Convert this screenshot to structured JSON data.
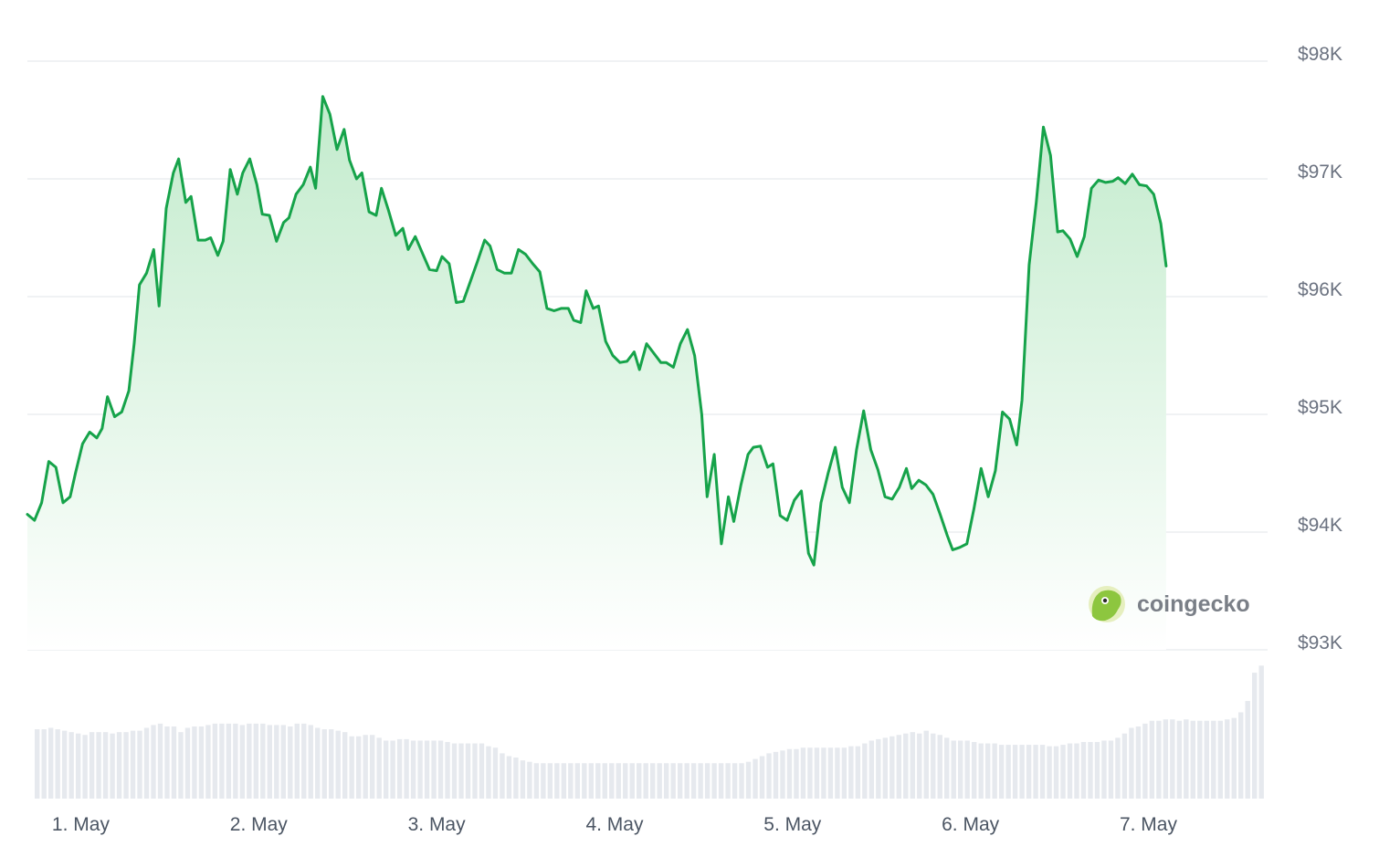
{
  "watermark": {
    "text": "coingecko"
  },
  "colors": {
    "line": "#16a34a",
    "area_top": "#c2ebcc",
    "area_bottom": "#ffffff",
    "grid": "#ebedf0",
    "volume": "#e6e9ee",
    "axis_text": "#6b7280"
  },
  "chart_data": {
    "type": "area",
    "title": "",
    "xlabel": "",
    "ylabel": "",
    "ylim": [
      93000,
      98000
    ],
    "y_ticks": [
      98000,
      97000,
      96000,
      95000,
      94000,
      93000
    ],
    "y_tick_labels": [
      "$98K",
      "$97K",
      "$96K",
      "$95K",
      "$94K",
      "$93K"
    ],
    "x_tick_labels": [
      "1. May",
      "2. May",
      "3. May",
      "4. May",
      "5. May",
      "6. May",
      "7. May"
    ],
    "x_tick_positions_days": [
      1,
      2,
      3,
      4,
      5,
      6,
      7
    ],
    "x_range_days": [
      0.7,
      7.67
    ],
    "grid": true,
    "series": [
      {
        "values": [
          [
            0.7,
            94150
          ],
          [
            0.74,
            94100
          ],
          [
            0.78,
            94250
          ],
          [
            0.82,
            94600
          ],
          [
            0.86,
            94550
          ],
          [
            0.9,
            94250
          ],
          [
            0.94,
            94300
          ],
          [
            0.97,
            94500
          ],
          [
            1.01,
            94750
          ],
          [
            1.05,
            94850
          ],
          [
            1.09,
            94800
          ],
          [
            1.12,
            94880
          ],
          [
            1.15,
            95150
          ],
          [
            1.19,
            94980
          ],
          [
            1.23,
            95020
          ],
          [
            1.27,
            95200
          ],
          [
            1.3,
            95600
          ],
          [
            1.33,
            96100
          ],
          [
            1.37,
            96200
          ],
          [
            1.41,
            96400
          ],
          [
            1.44,
            95920
          ],
          [
            1.48,
            96750
          ],
          [
            1.52,
            97050
          ],
          [
            1.55,
            97170
          ],
          [
            1.59,
            96800
          ],
          [
            1.62,
            96850
          ],
          [
            1.66,
            96480
          ],
          [
            1.7,
            96480
          ],
          [
            1.73,
            96500
          ],
          [
            1.77,
            96350
          ],
          [
            1.8,
            96470
          ],
          [
            1.84,
            97080
          ],
          [
            1.88,
            96870
          ],
          [
            1.91,
            97050
          ],
          [
            1.95,
            97170
          ],
          [
            1.99,
            96950
          ],
          [
            2.02,
            96700
          ],
          [
            2.06,
            96690
          ],
          [
            2.1,
            96470
          ],
          [
            2.14,
            96630
          ],
          [
            2.17,
            96670
          ],
          [
            2.21,
            96870
          ],
          [
            2.25,
            96950
          ],
          [
            2.29,
            97100
          ],
          [
            2.32,
            96920
          ],
          [
            2.36,
            97700
          ],
          [
            2.4,
            97550
          ],
          [
            2.44,
            97250
          ],
          [
            2.48,
            97420
          ],
          [
            2.51,
            97160
          ],
          [
            2.55,
            97000
          ],
          [
            2.58,
            97050
          ],
          [
            2.62,
            96720
          ],
          [
            2.66,
            96690
          ],
          [
            2.69,
            96920
          ],
          [
            2.73,
            96730
          ],
          [
            2.77,
            96520
          ],
          [
            2.81,
            96580
          ],
          [
            2.84,
            96400
          ],
          [
            2.88,
            96510
          ],
          [
            2.92,
            96370
          ],
          [
            2.96,
            96230
          ],
          [
            3.0,
            96220
          ],
          [
            3.03,
            96340
          ],
          [
            3.07,
            96280
          ],
          [
            3.11,
            95950
          ],
          [
            3.15,
            95960
          ],
          [
            3.19,
            96130
          ],
          [
            3.23,
            96300
          ],
          [
            3.27,
            96480
          ],
          [
            3.3,
            96430
          ],
          [
            3.34,
            96230
          ],
          [
            3.38,
            96200
          ],
          [
            3.42,
            96200
          ],
          [
            3.46,
            96400
          ],
          [
            3.5,
            96360
          ],
          [
            3.54,
            96280
          ],
          [
            3.58,
            96210
          ],
          [
            3.62,
            95900
          ],
          [
            3.66,
            95880
          ],
          [
            3.7,
            95900
          ],
          [
            3.74,
            95900
          ],
          [
            3.77,
            95800
          ],
          [
            3.81,
            95780
          ],
          [
            3.84,
            96050
          ],
          [
            3.88,
            95900
          ],
          [
            3.91,
            95920
          ],
          [
            3.95,
            95620
          ],
          [
            3.99,
            95500
          ],
          [
            4.03,
            95440
          ],
          [
            4.07,
            95450
          ],
          [
            4.11,
            95530
          ],
          [
            4.14,
            95380
          ],
          [
            4.18,
            95600
          ],
          [
            4.22,
            95520
          ],
          [
            4.26,
            95440
          ],
          [
            4.29,
            95440
          ],
          [
            4.33,
            95400
          ],
          [
            4.37,
            95600
          ],
          [
            4.41,
            95720
          ],
          [
            4.45,
            95500
          ],
          [
            4.49,
            95000
          ],
          [
            4.52,
            94300
          ],
          [
            4.56,
            94660
          ],
          [
            4.6,
            93900
          ],
          [
            4.64,
            94300
          ],
          [
            4.67,
            94090
          ],
          [
            4.71,
            94400
          ],
          [
            4.75,
            94660
          ],
          [
            4.78,
            94720
          ],
          [
            4.82,
            94730
          ],
          [
            4.86,
            94550
          ],
          [
            4.89,
            94580
          ],
          [
            4.93,
            94140
          ],
          [
            4.97,
            94100
          ],
          [
            5.01,
            94270
          ],
          [
            5.05,
            94350
          ],
          [
            5.09,
            93820
          ],
          [
            5.12,
            93720
          ],
          [
            5.16,
            94250
          ],
          [
            5.2,
            94500
          ],
          [
            5.24,
            94720
          ],
          [
            5.28,
            94380
          ],
          [
            5.32,
            94250
          ],
          [
            5.36,
            94700
          ],
          [
            5.4,
            95030
          ],
          [
            5.44,
            94700
          ],
          [
            5.48,
            94530
          ],
          [
            5.52,
            94300
          ],
          [
            5.56,
            94280
          ],
          [
            5.6,
            94380
          ],
          [
            5.64,
            94540
          ],
          [
            5.67,
            94370
          ],
          [
            5.71,
            94440
          ],
          [
            5.75,
            94400
          ],
          [
            5.79,
            94320
          ],
          [
            5.83,
            94150
          ],
          [
            5.87,
            93970
          ],
          [
            5.9,
            93850
          ],
          [
            5.94,
            93870
          ],
          [
            5.98,
            93900
          ],
          [
            6.02,
            94200
          ],
          [
            6.06,
            94540
          ],
          [
            6.1,
            94300
          ],
          [
            6.14,
            94520
          ],
          [
            6.18,
            95020
          ],
          [
            6.22,
            94960
          ],
          [
            6.26,
            94740
          ],
          [
            6.29,
            95120
          ],
          [
            6.33,
            96270
          ],
          [
            6.37,
            96800
          ],
          [
            6.41,
            97440
          ],
          [
            6.45,
            97200
          ],
          [
            6.49,
            96550
          ],
          [
            6.52,
            96560
          ],
          [
            6.56,
            96490
          ],
          [
            6.6,
            96340
          ],
          [
            6.64,
            96510
          ],
          [
            6.68,
            96920
          ],
          [
            6.72,
            96990
          ],
          [
            6.76,
            96970
          ],
          [
            6.8,
            96980
          ],
          [
            6.83,
            97010
          ],
          [
            6.87,
            96960
          ],
          [
            6.91,
            97040
          ],
          [
            6.95,
            96950
          ],
          [
            6.99,
            96940
          ],
          [
            7.03,
            96870
          ],
          [
            7.07,
            96620
          ],
          [
            7.1,
            96260
          ]
        ]
      }
    ],
    "volume": [
      0.49,
      0.49,
      0.5,
      0.49,
      0.48,
      0.47,
      0.46,
      0.45,
      0.47,
      0.47,
      0.47,
      0.46,
      0.47,
      0.47,
      0.48,
      0.48,
      0.5,
      0.52,
      0.53,
      0.51,
      0.51,
      0.47,
      0.5,
      0.51,
      0.51,
      0.52,
      0.53,
      0.53,
      0.53,
      0.53,
      0.52,
      0.53,
      0.53,
      0.53,
      0.52,
      0.52,
      0.52,
      0.51,
      0.53,
      0.53,
      0.52,
      0.5,
      0.49,
      0.49,
      0.48,
      0.47,
      0.44,
      0.44,
      0.45,
      0.45,
      0.43,
      0.41,
      0.41,
      0.42,
      0.42,
      0.41,
      0.41,
      0.41,
      0.41,
      0.41,
      0.4,
      0.39,
      0.39,
      0.39,
      0.39,
      0.39,
      0.37,
      0.36,
      0.32,
      0.3,
      0.29,
      0.27,
      0.26,
      0.25,
      0.25,
      0.25,
      0.25,
      0.25,
      0.25,
      0.25,
      0.25,
      0.25,
      0.25,
      0.25,
      0.25,
      0.25,
      0.25,
      0.25,
      0.25,
      0.25,
      0.25,
      0.25,
      0.25,
      0.25,
      0.25,
      0.25,
      0.25,
      0.25,
      0.25,
      0.25,
      0.25,
      0.25,
      0.25,
      0.25,
      0.26,
      0.28,
      0.3,
      0.32,
      0.33,
      0.34,
      0.35,
      0.35,
      0.36,
      0.36,
      0.36,
      0.36,
      0.36,
      0.36,
      0.36,
      0.37,
      0.37,
      0.39,
      0.41,
      0.42,
      0.43,
      0.44,
      0.45,
      0.46,
      0.47,
      0.46,
      0.48,
      0.46,
      0.45,
      0.43,
      0.41,
      0.41,
      0.41,
      0.4,
      0.39,
      0.39,
      0.39,
      0.38,
      0.38,
      0.38,
      0.38,
      0.38,
      0.38,
      0.38,
      0.37,
      0.37,
      0.38,
      0.39,
      0.39,
      0.4,
      0.4,
      0.4,
      0.41,
      0.41,
      0.43,
      0.46,
      0.5,
      0.51,
      0.53,
      0.55,
      0.55,
      0.56,
      0.56,
      0.55,
      0.56,
      0.55,
      0.55,
      0.55,
      0.55,
      0.55,
      0.56,
      0.57,
      0.61,
      0.69,
      0.89,
      0.94
    ]
  }
}
